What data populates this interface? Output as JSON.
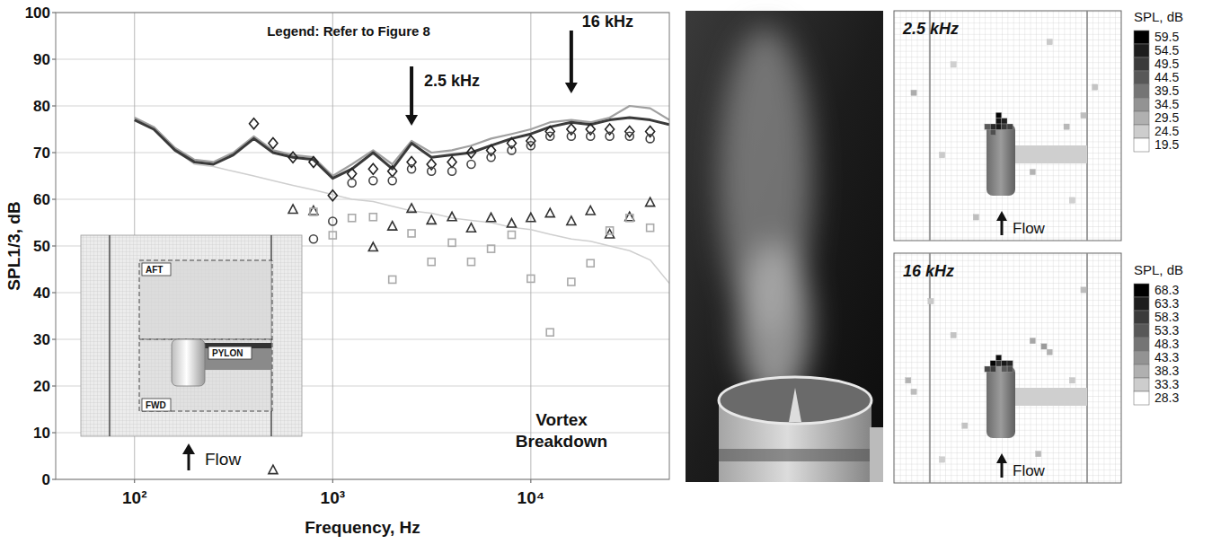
{
  "chart_data": [
    {
      "type": "line",
      "xlabel": "Frequency, Hz",
      "ylabel": "SPL1/3, dB",
      "log": "x",
      "grid": true,
      "xlim": [
        40,
        50000
      ],
      "ylim": [
        0,
        100
      ],
      "xticks": [
        {
          "value": 100,
          "label": "10²"
        },
        {
          "value": 1000,
          "label": "10³"
        },
        {
          "value": 10000,
          "label": "10⁴"
        }
      ],
      "yticks": [
        0,
        10,
        20,
        30,
        40,
        50,
        60,
        70,
        80,
        90,
        100
      ],
      "annotations": [
        {
          "text": "Legend: Refer to Figure 8"
        },
        {
          "text": "2.5 kHz",
          "x": 2500
        },
        {
          "text": "16 kHz",
          "x": 16000
        },
        {
          "text": "Vortex Breakdown"
        }
      ],
      "inset": {
        "labels": [
          "AFT",
          "PYLON",
          "FWD"
        ],
        "flow": "Flow"
      },
      "x": [
        100,
        125,
        160,
        200,
        250,
        315,
        400,
        500,
        630,
        800,
        1000,
        1250,
        1600,
        2000,
        2500,
        3150,
        4000,
        5000,
        6300,
        8000,
        10000,
        12500,
        16000,
        20000,
        25000,
        31500,
        40000,
        50000
      ],
      "series": [
        {
          "type": "line",
          "color": "#3a3a3a",
          "line_style": "solid",
          "values": [
            77,
            75,
            70.5,
            68,
            67.5,
            69.5,
            73,
            70,
            69,
            68.5,
            64.5,
            66.5,
            70,
            66.5,
            72,
            69,
            69.5,
            70,
            71.5,
            73,
            74,
            75.5,
            76.5,
            76,
            77,
            77.5,
            77,
            76
          ]
        },
        {
          "type": "line",
          "color": "#a0a0a0",
          "line_style": "solid",
          "values": [
            77.5,
            75.5,
            71,
            68.5,
            68,
            70,
            73.5,
            70.5,
            69.5,
            69,
            65,
            67.5,
            70.5,
            67.5,
            72.5,
            70,
            70.5,
            71.5,
            73,
            74,
            75,
            76.5,
            77,
            76.5,
            77.5,
            80,
            79.5,
            77
          ]
        },
        {
          "type": "line",
          "color": "#cfcfcf",
          "line_style": "solid",
          "values": [
            77,
            75,
            70.5,
            67.5,
            67,
            66,
            65,
            64,
            63,
            62,
            61,
            60,
            59.5,
            58.5,
            57.5,
            57,
            56,
            55.5,
            55,
            54,
            53.5,
            52.5,
            51.5,
            51,
            50,
            49,
            47,
            42
          ]
        },
        {
          "type": "scatter",
          "color": "#222222",
          "marker": "diamond",
          "values": [
            null,
            null,
            null,
            null,
            null,
            null,
            76.2,
            72,
            69,
            68,
            60.8,
            65.5,
            66.5,
            66,
            68,
            67.5,
            68,
            70,
            70.5,
            72,
            72.5,
            74.5,
            75,
            75,
            75,
            74.5,
            74.5,
            null
          ]
        },
        {
          "type": "scatter",
          "color": "#444444",
          "marker": "circle",
          "values": [
            null,
            null,
            null,
            null,
            null,
            null,
            null,
            null,
            null,
            51.5,
            55.3,
            63.5,
            64,
            64,
            66.5,
            66,
            66,
            67.5,
            69,
            70.5,
            71.5,
            73.5,
            73.5,
            73.5,
            73.5,
            73.5,
            73,
            null
          ]
        },
        {
          "type": "scatter",
          "color": "#333333",
          "marker": "triangle",
          "values": [
            null,
            null,
            null,
            null,
            null,
            null,
            null,
            2,
            57.8,
            57.5,
            null,
            null,
            49.7,
            54.2,
            58,
            55.5,
            56.2,
            53.8,
            56,
            54.8,
            56,
            57,
            55.3,
            57.5,
            52.5,
            56.2,
            59.3,
            null
          ]
        },
        {
          "type": "scatter",
          "color": "#aaaaaa",
          "marker": "square",
          "values": [
            null,
            null,
            null,
            null,
            null,
            null,
            null,
            null,
            null,
            57.3,
            52.3,
            56,
            56.2,
            42.8,
            52.7,
            46.6,
            50.7,
            46.6,
            49.4,
            52.4,
            43,
            31.5,
            42.3,
            46.3,
            53.3,
            56,
            53.9,
            null
          ]
        }
      ]
    },
    {
      "type": "heatmap",
      "title": "2.5 kHz",
      "flow": "Flow",
      "colorbar": {
        "title": "SPL, dB",
        "range": [
          19.5,
          59.5
        ],
        "ticks": [
          59.5,
          54.5,
          49.5,
          44.5,
          39.5,
          34.5,
          29.5,
          24.5,
          19.5
        ]
      },
      "cells": [
        [
          18,
          18,
          59
        ],
        [
          18,
          19,
          56
        ],
        [
          19,
          19,
          54
        ],
        [
          17,
          20,
          52
        ],
        [
          18,
          20,
          55
        ],
        [
          19,
          20,
          50
        ],
        [
          20,
          20,
          48
        ],
        [
          17,
          21,
          46
        ],
        [
          16,
          20,
          44
        ],
        [
          3,
          14,
          30
        ],
        [
          30,
          20,
          28
        ],
        [
          33,
          18,
          27
        ],
        [
          8,
          25,
          25
        ],
        [
          24,
          28,
          29
        ],
        [
          35,
          13,
          26
        ],
        [
          10,
          9,
          24
        ],
        [
          27,
          5,
          25
        ],
        [
          14,
          36,
          27
        ],
        [
          31,
          33,
          24
        ]
      ]
    },
    {
      "type": "heatmap",
      "title": "16 kHz",
      "flow": "Flow",
      "colorbar": {
        "title": "SPL, dB",
        "range": [
          28.3,
          68.3
        ],
        "ticks": [
          68.3,
          63.3,
          58.3,
          53.3,
          48.3,
          43.3,
          38.3,
          33.3,
          28.3
        ]
      },
      "cells": [
        [
          17,
          19,
          68
        ],
        [
          18,
          18,
          66
        ],
        [
          19,
          19,
          64
        ],
        [
          20,
          19,
          62
        ],
        [
          18,
          19,
          60
        ],
        [
          16,
          20,
          56
        ],
        [
          17,
          20,
          58
        ],
        [
          20,
          20,
          55
        ],
        [
          19,
          20,
          53
        ],
        [
          2,
          22,
          38
        ],
        [
          3,
          24,
          36
        ],
        [
          10,
          14,
          35
        ],
        [
          24,
          15,
          40
        ],
        [
          26,
          16,
          42
        ],
        [
          27,
          17,
          38
        ],
        [
          31,
          22,
          34
        ],
        [
          25,
          35,
          37
        ],
        [
          12,
          30,
          35
        ],
        [
          33,
          6,
          36
        ],
        [
          6,
          8,
          34
        ],
        [
          8,
          36,
          33
        ]
      ]
    }
  ]
}
